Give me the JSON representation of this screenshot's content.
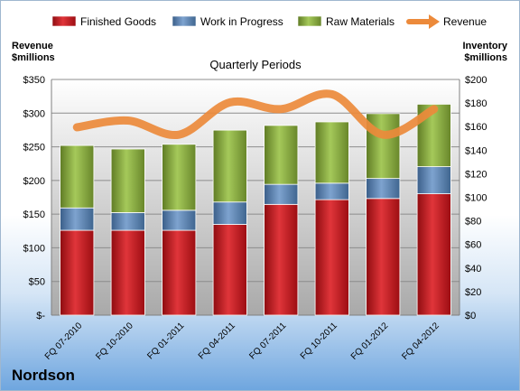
{
  "chart_data": {
    "type": "bar",
    "title": "Quarterly Periods",
    "ylabel_left": [
      "Revenue",
      "$millions"
    ],
    "ylabel_right": [
      "Inventory",
      "$millions"
    ],
    "company": "Nordson",
    "categories": [
      "FQ 07-2010",
      "FQ 10-2010",
      "FQ 01-2011",
      "FQ 04-2011",
      "FQ 07-2011",
      "FQ 10-2011",
      "FQ 01-2012",
      "FQ 04-2012"
    ],
    "left_axis": {
      "min": 0,
      "max": 350,
      "ticks": [
        "$-",
        "$50",
        "$100",
        "$150",
        "$200",
        "$250",
        "$300",
        "$350"
      ]
    },
    "right_axis": {
      "min": 0,
      "max": 200,
      "ticks": [
        "$0",
        "$20",
        "$40",
        "$60",
        "$80",
        "$100",
        "$120",
        "$140",
        "$160",
        "$180",
        "$200"
      ]
    },
    "legend_position": "top",
    "series": [
      {
        "name": "Finished Goods",
        "kind": "bar",
        "axis": "right",
        "color": "#d9141b",
        "values": [
          72,
          72,
          72,
          77,
          94,
          98,
          99,
          103
        ]
      },
      {
        "name": "Work in Progress",
        "kind": "bar",
        "axis": "right",
        "color": "#4f81bd",
        "values": [
          19,
          15,
          17,
          19,
          17,
          14,
          17,
          23
        ]
      },
      {
        "name": "Raw Materials",
        "kind": "bar",
        "axis": "right",
        "color": "#8fb63c",
        "values": [
          53,
          54,
          56,
          61,
          50,
          52,
          55,
          53
        ]
      },
      {
        "name": "Revenue",
        "kind": "line",
        "axis": "left",
        "color": "#ec8a3b",
        "values": [
          279,
          289,
          268,
          316,
          306,
          328,
          268,
          306
        ]
      }
    ]
  }
}
